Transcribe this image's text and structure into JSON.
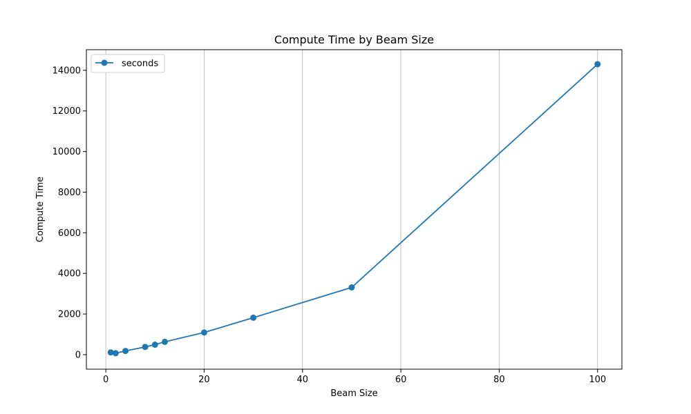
{
  "chart_data": {
    "type": "line",
    "title": "Compute Time by Beam Size",
    "xlabel": "Beam Size",
    "ylabel": "Compute Time",
    "xlim": [
      -3.95,
      104.95
    ],
    "ylim": [
      -715,
      15015
    ],
    "xticks": [
      0,
      20,
      40,
      60,
      80,
      100
    ],
    "yticks": [
      0,
      2000,
      4000,
      6000,
      8000,
      10000,
      12000,
      14000
    ],
    "grid": "x-only",
    "legend_position": "top-left",
    "series": [
      {
        "name": "seconds",
        "color": "#1f77b4",
        "x": [
          1,
          2,
          4,
          8,
          10,
          12,
          20,
          30,
          50,
          100
        ],
        "y": [
          110,
          70,
          180,
          380,
          490,
          630,
          1090,
          1820,
          3310,
          14300
        ]
      }
    ]
  }
}
